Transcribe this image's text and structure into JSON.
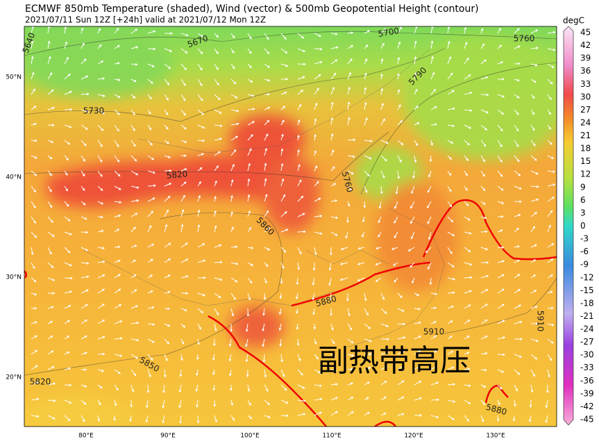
{
  "header": {
    "title": "ECMWF 850mb Temperature (shaded), Wind (vector) & 500mb Geopotential Height (contour)",
    "subtitle": "2021/07/11 Sun 12Z [+24h] valid at 2021/07/12 Mon 12Z"
  },
  "map": {
    "lat_labels": [
      "50°N",
      "40°N",
      "30°N",
      "20°N"
    ],
    "lon_labels": [
      "80°E",
      "90°E",
      "100°E",
      "110°E",
      "120°E",
      "130°E"
    ],
    "contour_labels": [
      "5640",
      "5670",
      "5700",
      "5760",
      "5790",
      "5730",
      "5820",
      "5760",
      "5860",
      "5880",
      "5910",
      "5910",
      "5850",
      "5820",
      "5880"
    ],
    "annotation": "副热带高压"
  },
  "colorbar": {
    "label": "degC",
    "ticks": [
      45,
      42,
      39,
      36,
      33,
      30,
      27,
      24,
      21,
      18,
      15,
      12,
      9,
      6,
      3,
      0,
      -3,
      -6,
      -9,
      -12,
      -15,
      -18,
      -21,
      -24,
      -27,
      -30,
      -33,
      -36,
      -39,
      -42,
      -45
    ]
  }
}
